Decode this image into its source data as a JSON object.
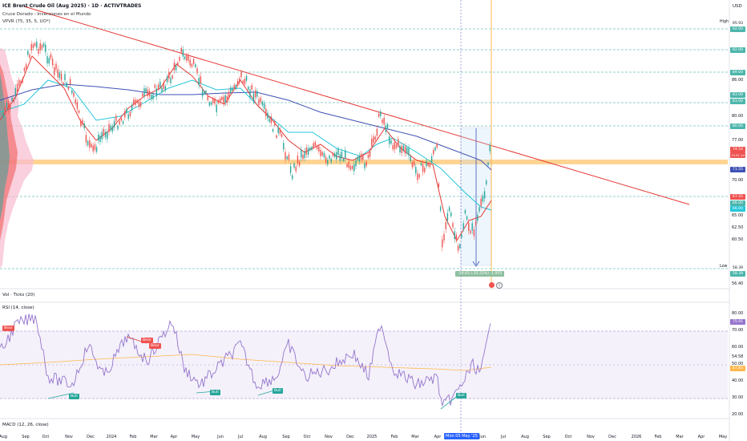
{
  "header": {
    "title": "ICE Brent Crude Oil (Aug 2025) · 1D · ACTIVTRADES",
    "indicator1": "Cruce Dorado - Inversiones en el Mundo",
    "indicator2": "VPVR (75, 35, 5, UO*)"
  },
  "currency": "USD",
  "price_axis": {
    "labels": [
      "95.93",
      "92.00",
      "89.00",
      "86.00",
      "83.00",
      "80.00",
      "77.00",
      "74.54",
      "71.55",
      "70.00",
      "67.55",
      "66.00",
      "65.00",
      "62.50",
      "60.50",
      "58.39",
      "56.40"
    ],
    "high_label": "High",
    "high_value": "95.93",
    "low_label": "Low",
    "low_value": "58.39",
    "current_price": "74.54",
    "current_sub": "74.51 1d"
  },
  "volume_pane": {
    "label": "Vol · Ticks (20)"
  },
  "rsi_pane": {
    "label": "RSI (14, close)",
    "axis_labels": [
      "80.00",
      "75.91",
      "70.00",
      "60.00",
      "54.58",
      "50.00",
      "47.83",
      "40.00",
      "30.00",
      "20.00"
    ],
    "current": "75.91"
  },
  "macd_pane": {
    "label": "MACD (12, 26, close)"
  },
  "measure_label": "-19.83 (-25.25%) -1,955",
  "signals": [
    {
      "text": "Bear",
      "kind": "bear"
    },
    {
      "text": "Bear",
      "kind": "bear"
    },
    {
      "text": "Bear",
      "kind": "bear"
    },
    {
      "text": "Bull",
      "kind": "bull"
    },
    {
      "text": "Bull",
      "kind": "bull"
    },
    {
      "text": "Bull",
      "kind": "bull"
    },
    {
      "text": "Bull",
      "kind": "bull"
    }
  ],
  "time_axis": {
    "labels": [
      "Aug",
      "Sep",
      "Oct",
      "Nov",
      "Dec",
      "2024",
      "Feb",
      "Mar",
      "Apr",
      "May",
      "Jun",
      "Jul",
      "Aug",
      "Sep",
      "Oct",
      "Nov",
      "Dec",
      "2025",
      "Feb",
      "Mar",
      "Apr",
      "Jun",
      "Jul",
      "Aug",
      "Sep",
      "Oct",
      "Nov",
      "Dec",
      "2026",
      "Feb",
      "Mar",
      "Apr",
      "May"
    ],
    "highlight": "Mon 05 May '25"
  },
  "colors": {
    "trendline": "#e53935",
    "ma_fast": "#e53935",
    "ma_mid": "#26c6da",
    "ma_slow": "#3f51b5",
    "horizontal_band": "#ffcc80",
    "rsi_line": "#9575cd",
    "rsi_band": "#ede7f6",
    "up_candle": "#26a69a",
    "down_candle": "#ef5350",
    "highlight": "#2962ff"
  }
}
